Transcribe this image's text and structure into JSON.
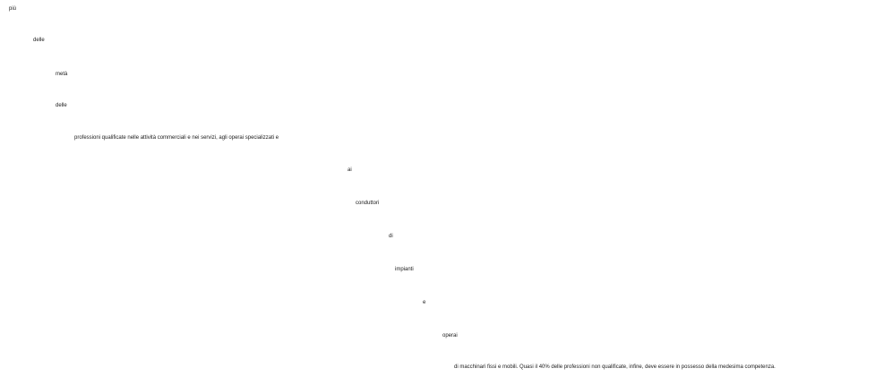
{
  "text_fragments": [
    "più",
    "delle",
    "metà",
    "delle",
    "professioni qualificate nelle attività commerciali e nei servizi, agli operai specializzati e",
    "ai",
    "conduttori",
    "di",
    "impianti",
    "e",
    "operai",
    "di macchinari fissi e mobili. Quasi il 40% delle professioni non qualificate, infine, deve essere in possesso della medesima competenza."
  ]
}
